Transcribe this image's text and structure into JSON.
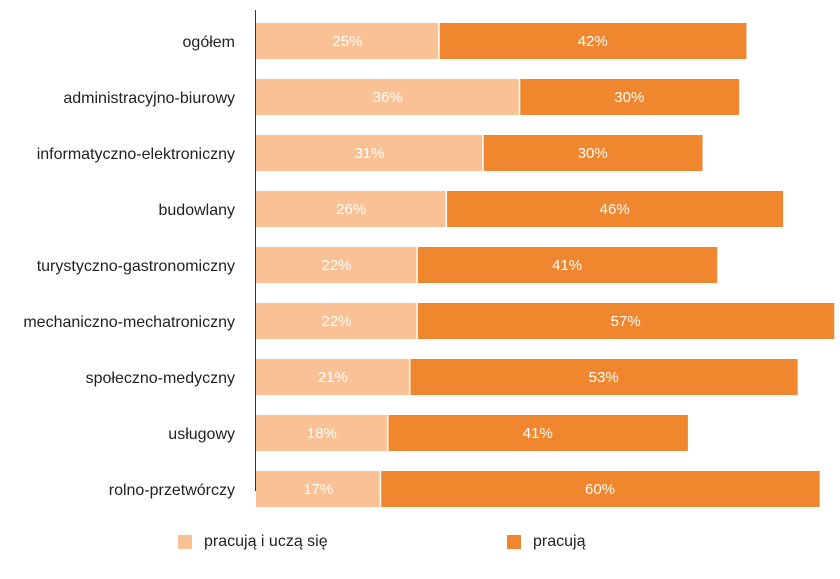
{
  "chart_data": {
    "type": "bar",
    "orientation": "horizontal",
    "stacked": true,
    "categories": [
      "ogółem",
      "administracyjno-biurowy",
      "informatyczno-elektroniczny",
      "budowlany",
      "turystyczno-gastronomiczny",
      "mechaniczno-mechatroniczny",
      "społeczno-medyczny",
      "usługowy",
      "rolno-przetwórczy"
    ],
    "series": [
      {
        "name": "pracują i uczą się",
        "color": "#fac195",
        "values": [
          25,
          36,
          31,
          26,
          22,
          22,
          21,
          18,
          17
        ],
        "labels": [
          "25%",
          "36%",
          "31%",
          "26%",
          "22%",
          "22%",
          "21%",
          "18%",
          "17%"
        ]
      },
      {
        "name": "pracują",
        "color": "#f0862e",
        "values": [
          42,
          30,
          30,
          46,
          41,
          57,
          53,
          41,
          60
        ],
        "labels": [
          "42%",
          "30%",
          "30%",
          "46%",
          "41%",
          "57%",
          "53%",
          "41%",
          "60%"
        ]
      }
    ],
    "xlim": [
      0,
      80
    ],
    "grid": false,
    "legend_position": "bottom"
  }
}
